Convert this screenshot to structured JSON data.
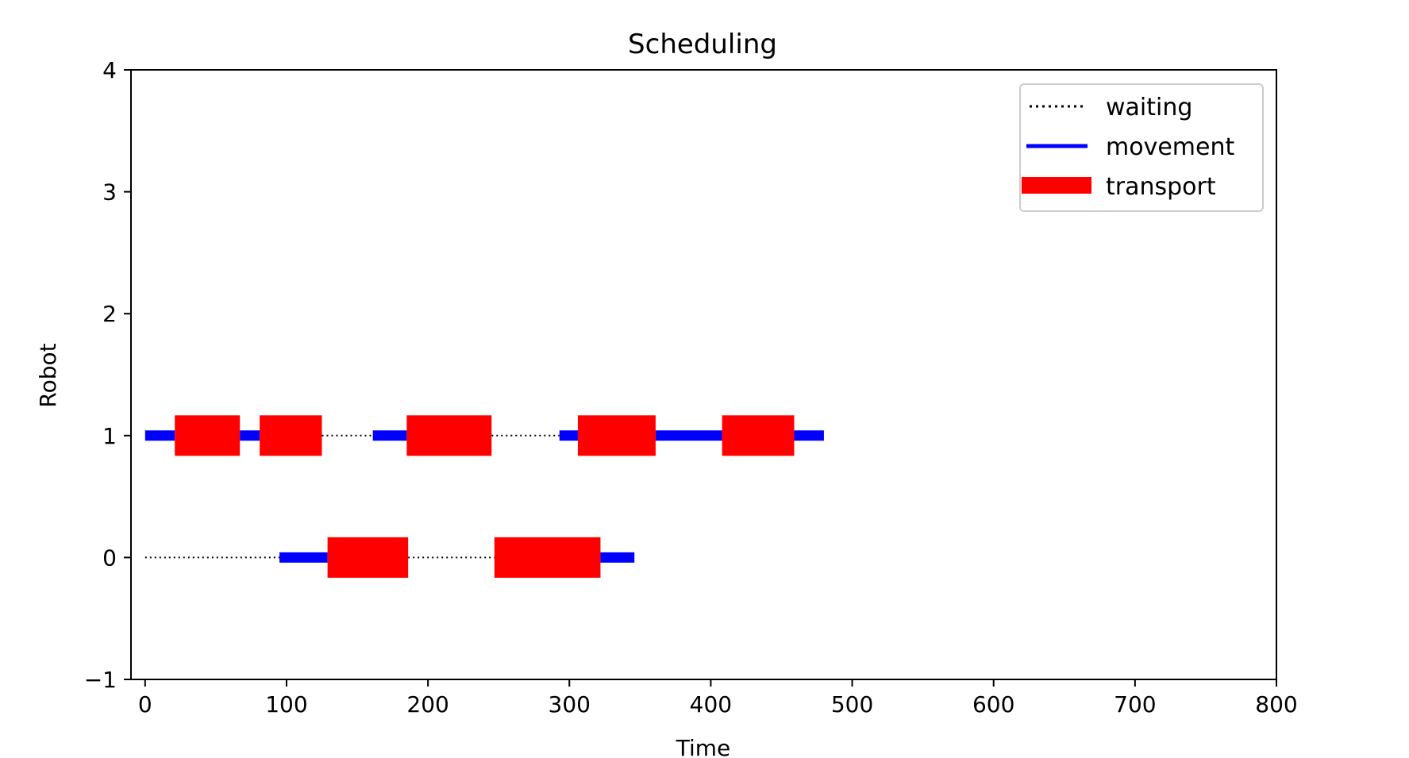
{
  "chart_data": {
    "type": "gantt",
    "title": "Scheduling",
    "xlabel": "Time",
    "ylabel": "Robot",
    "xlim": [
      -10,
      800
    ],
    "ylim": [
      -1,
      4
    ],
    "x_ticks": [
      0,
      100,
      200,
      300,
      400,
      500,
      600,
      700,
      800
    ],
    "y_ticks": [
      -1,
      0,
      1,
      2,
      3,
      4
    ],
    "y_tick_labels": [
      "−1",
      "0",
      "1",
      "2",
      "3",
      "4"
    ],
    "grid": false,
    "legend_position": "top-right",
    "legend": [
      {
        "name": "waiting",
        "style": "dotted",
        "color": "#000000"
      },
      {
        "name": "movement",
        "style": "line",
        "color": "#0000ff"
      },
      {
        "name": "transport",
        "style": "block",
        "color": "#ff0000"
      }
    ],
    "series": [
      {
        "name": "waiting",
        "color": "#000000",
        "segments": [
          {
            "robot": 1,
            "start": 125,
            "end": 161
          },
          {
            "robot": 1,
            "start": 245,
            "end": 293
          },
          {
            "robot": 0,
            "start": 0,
            "end": 95
          },
          {
            "robot": 0,
            "start": 186,
            "end": 247
          }
        ]
      },
      {
        "name": "movement",
        "color": "#0000ff",
        "segments": [
          {
            "robot": 1,
            "start": 0,
            "end": 21
          },
          {
            "robot": 1,
            "start": 67,
            "end": 81
          },
          {
            "robot": 1,
            "start": 161,
            "end": 185
          },
          {
            "robot": 1,
            "start": 293,
            "end": 306
          },
          {
            "robot": 1,
            "start": 361,
            "end": 408
          },
          {
            "robot": 1,
            "start": 459,
            "end": 480
          },
          {
            "robot": 0,
            "start": 95,
            "end": 129
          },
          {
            "robot": 0,
            "start": 322,
            "end": 346
          }
        ]
      },
      {
        "name": "transport",
        "color": "#ff0000",
        "segments": [
          {
            "robot": 1,
            "start": 21,
            "end": 67
          },
          {
            "robot": 1,
            "start": 81,
            "end": 125
          },
          {
            "robot": 1,
            "start": 185,
            "end": 245
          },
          {
            "robot": 1,
            "start": 306,
            "end": 361
          },
          {
            "robot": 1,
            "start": 408,
            "end": 459
          },
          {
            "robot": 0,
            "start": 129,
            "end": 186
          },
          {
            "robot": 0,
            "start": 247,
            "end": 322
          }
        ]
      }
    ]
  }
}
